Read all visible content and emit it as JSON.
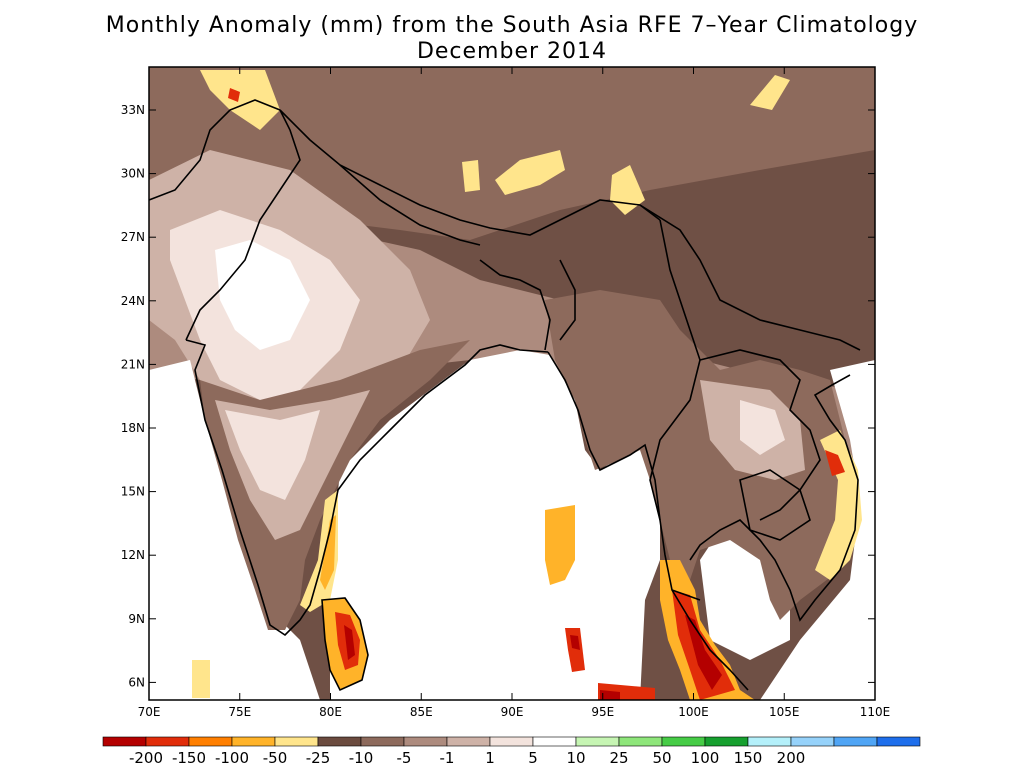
{
  "title": {
    "line1": "Monthly Anomaly (mm) from the South Asia RFE 7–Year Climatology",
    "line2": "December 2014"
  },
  "axes": {
    "lat_ticks": [
      "33N",
      "30N",
      "27N",
      "24N",
      "21N",
      "18N",
      "15N",
      "12N",
      "9N",
      "6N"
    ],
    "lon_ticks": [
      "70E",
      "75E",
      "80E",
      "85E",
      "90E",
      "95E",
      "100E",
      "105E",
      "110E"
    ]
  },
  "colorbar": {
    "labels": [
      "-200",
      "-150",
      "-100",
      "-50",
      "-25",
      "-10",
      "-5",
      "-1",
      "1",
      "5",
      "10",
      "25",
      "50",
      "100",
      "150",
      "200"
    ],
    "colors": [
      "#b40000",
      "#e12d0a",
      "#ff7f00",
      "#ffb329",
      "#ffe58c",
      "#6b4b3f",
      "#8d6a5c",
      "#ad8b7e",
      "#ceb2a7",
      "#f3e3dd",
      "#ffffff",
      "#c6f5b3",
      "#8ee67a",
      "#46cc46",
      "#16a02f",
      "#b4f0fa",
      "#96d2fa",
      "#50a5f5",
      "#1e6eeb"
    ]
  },
  "palette": {
    "land_dark": "#6f5045",
    "land_mid": "#8d6a5c",
    "land_light": "#ad8b7e",
    "land_pale": "#ceb2a7",
    "land_vpale": "#f3e3dd",
    "dry_yellow": "#ffe58c",
    "dry_orange": "#ffb329",
    "dry_red": "#e12d0a",
    "dry_dark": "#b40000",
    "wet_green": "#46cc46"
  }
}
